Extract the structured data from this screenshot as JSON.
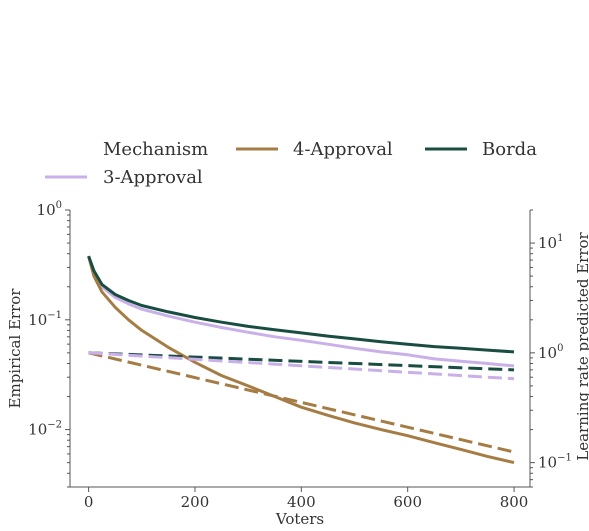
{
  "chart_data": {
    "type": "line",
    "legend": {
      "title": "Mechanism",
      "entries": [
        {
          "label": "4-Approval",
          "color": "#a67c45"
        },
        {
          "label": "Borda",
          "color": "#1a4d42"
        },
        {
          "label": "3-Approval",
          "color": "#c9b0e8"
        }
      ]
    },
    "xlabel": "Voters",
    "ylabel_left": "Empirical Error",
    "ylabel_right": "Learning rate predicted Error",
    "xlim": [
      -35,
      830
    ],
    "x_ticks": [
      0,
      200,
      400,
      600,
      800
    ],
    "left_axis": {
      "scale": "log",
      "ylim": [
        0.003,
        1.0
      ],
      "ticks": [
        {
          "value": 1.0,
          "base": "10",
          "exp": "0"
        },
        {
          "value": 0.1,
          "base": "10",
          "exp": "−1"
        },
        {
          "value": 0.01,
          "base": "10",
          "exp": "−2"
        }
      ]
    },
    "right_axis": {
      "scale": "log",
      "ylim": [
        0.06,
        20.0
      ],
      "ticks": [
        {
          "value": 10,
          "base": "10",
          "exp": "1"
        },
        {
          "value": 1,
          "base": "10",
          "exp": "0"
        },
        {
          "value": 0.1,
          "base": "10",
          "exp": "−1"
        }
      ]
    },
    "grid": false,
    "series": [
      {
        "name": "3-Approval",
        "style": "solid",
        "axis": "left",
        "color": "#c9b0e8",
        "x": [
          0,
          10,
          25,
          50,
          75,
          100,
          150,
          200,
          250,
          300,
          350,
          400,
          450,
          500,
          550,
          600,
          650,
          700,
          750,
          800
        ],
        "y": [
          0.38,
          0.27,
          0.2,
          0.16,
          0.14,
          0.125,
          0.108,
          0.095,
          0.085,
          0.077,
          0.07,
          0.065,
          0.06,
          0.055,
          0.051,
          0.048,
          0.044,
          0.042,
          0.04,
          0.038
        ]
      },
      {
        "name": "4-Approval",
        "style": "solid",
        "axis": "left",
        "color": "#a67c45",
        "x": [
          0,
          10,
          25,
          50,
          75,
          100,
          150,
          200,
          250,
          300,
          350,
          400,
          450,
          500,
          550,
          600,
          650,
          700,
          750,
          800
        ],
        "y": [
          0.38,
          0.25,
          0.18,
          0.13,
          0.1,
          0.08,
          0.056,
          0.041,
          0.031,
          0.025,
          0.02,
          0.016,
          0.0135,
          0.0115,
          0.01,
          0.0088,
          0.0076,
          0.0066,
          0.0057,
          0.005
        ]
      },
      {
        "name": "Borda",
        "style": "solid",
        "axis": "left",
        "color": "#1a4d42",
        "x": [
          0,
          10,
          25,
          50,
          75,
          100,
          150,
          200,
          250,
          300,
          350,
          400,
          450,
          500,
          550,
          600,
          650,
          700,
          750,
          800
        ],
        "y": [
          0.38,
          0.28,
          0.21,
          0.17,
          0.15,
          0.135,
          0.118,
          0.105,
          0.095,
          0.087,
          0.081,
          0.076,
          0.071,
          0.067,
          0.063,
          0.06,
          0.057,
          0.055,
          0.053,
          0.051
        ]
      },
      {
        "name": "4-Approval",
        "style": "dashed",
        "axis": "right",
        "color": "#a67c45",
        "x": [
          0,
          800
        ],
        "y": [
          1.0,
          0.125
        ]
      },
      {
        "name": "Borda",
        "style": "dashed",
        "axis": "right",
        "color": "#1a4d42",
        "x": [
          0,
          800
        ],
        "y": [
          1.0,
          0.7
        ]
      },
      {
        "name": "3-Approval",
        "style": "dashed",
        "axis": "right",
        "color": "#c9b0e8",
        "x": [
          0,
          800
        ],
        "y": [
          1.0,
          0.58
        ]
      }
    ]
  }
}
